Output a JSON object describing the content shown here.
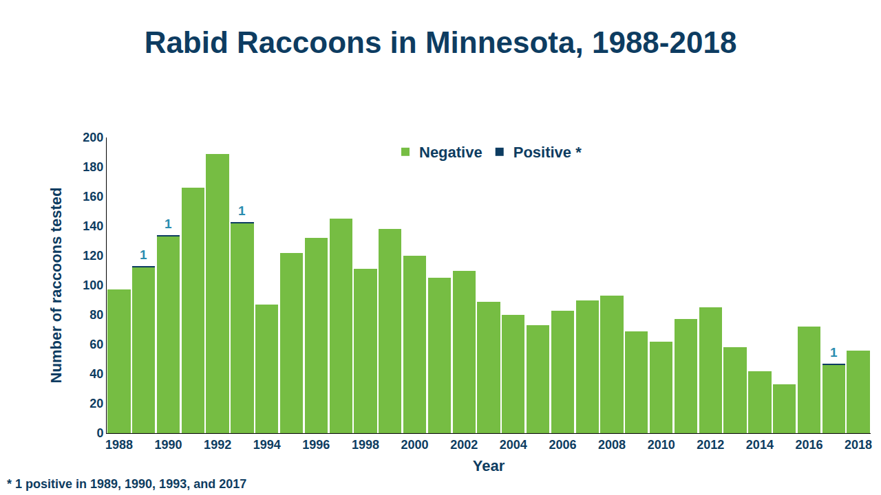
{
  "chart_data": {
    "type": "bar",
    "title": "Rabid Raccoons in Minnesota, 1988-2018",
    "x_label": "Year",
    "y_label": "Number of raccoons tested",
    "x": [
      1988,
      1989,
      1990,
      1991,
      1992,
      1993,
      1994,
      1995,
      1996,
      1997,
      1998,
      1999,
      2000,
      2001,
      2002,
      2003,
      2004,
      2005,
      2006,
      2007,
      2008,
      2009,
      2010,
      2011,
      2012,
      2013,
      2014,
      2015,
      2016,
      2017,
      2018
    ],
    "series": [
      {
        "name": "Negative",
        "color": "#76bd43",
        "values": [
          97,
          112,
          133,
          166,
          189,
          142,
          87,
          122,
          132,
          145,
          111,
          138,
          120,
          105,
          110,
          89,
          80,
          73,
          83,
          90,
          93,
          69,
          62,
          77,
          85,
          58,
          42,
          33,
          72,
          46,
          56
        ]
      },
      {
        "name": "Positive *",
        "color": "#0d3c61",
        "data_labels": true,
        "values": [
          null,
          1,
          1,
          null,
          null,
          1,
          null,
          null,
          null,
          null,
          null,
          null,
          null,
          null,
          null,
          null,
          null,
          null,
          null,
          null,
          null,
          null,
          null,
          null,
          null,
          null,
          null,
          null,
          null,
          1,
          null
        ]
      }
    ],
    "stacked": true,
    "legend": "top",
    "xlim": [
      1987.5,
      2018.5
    ],
    "xticks": [
      1988,
      1990,
      1992,
      1994,
      1996,
      1998,
      2000,
      2002,
      2004,
      2006,
      2008,
      2010,
      2012,
      2014,
      2016,
      2018
    ],
    "ylim": [
      0,
      200
    ],
    "yticks": [
      0,
      20,
      40,
      60,
      80,
      100,
      120,
      140,
      160,
      180,
      200
    ],
    "grid": false,
    "annotations": [
      "* 1 positive in 1989, 1990, 1993, and 2017"
    ]
  }
}
